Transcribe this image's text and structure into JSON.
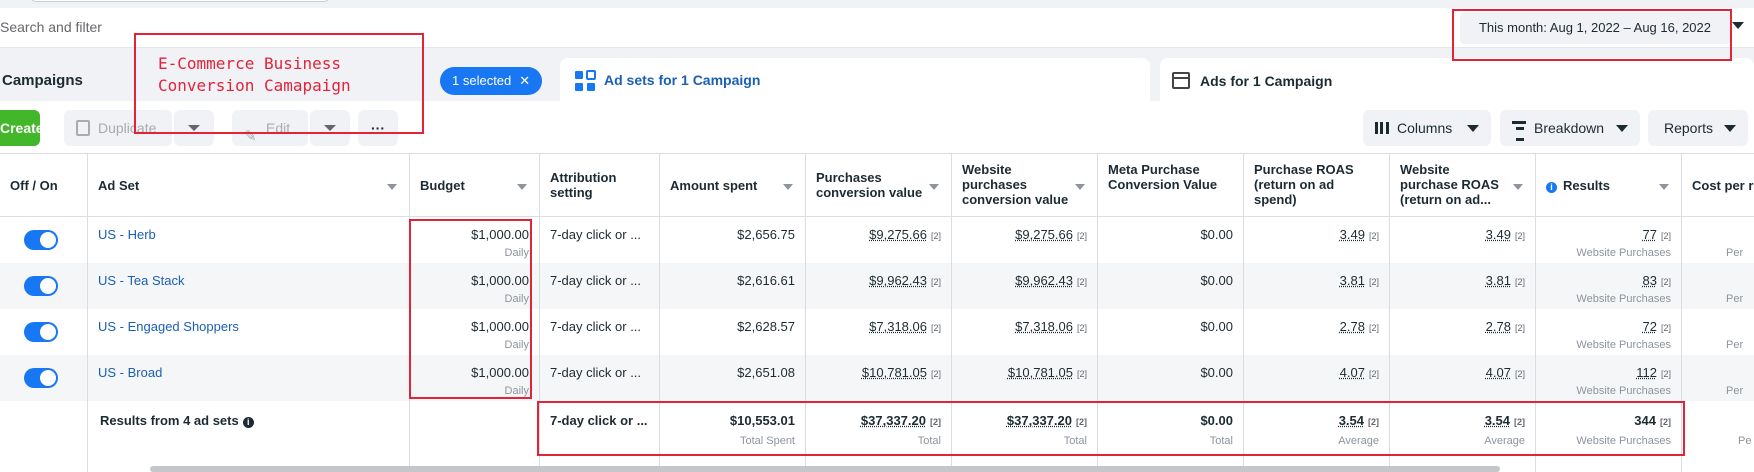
{
  "search": {
    "placeholder": "Search and filter"
  },
  "date_range": {
    "label": "This month: Aug 1, 2022 – Aug 16, 2022"
  },
  "tabs": {
    "campaigns": "Campaigns",
    "selected_chip": "1 selected",
    "adsets": "Ad sets for 1 Campaign",
    "ads": "Ads for 1 Campaign"
  },
  "annotation": {
    "line1": "E-Commerce Business",
    "line2": "Conversion Camapaign"
  },
  "toolbar": {
    "create": "Create",
    "duplicate": "Duplicate",
    "edit": "Edit",
    "more": "···",
    "columns": "Columns",
    "breakdown": "Breakdown",
    "reports": "Reports"
  },
  "columns": {
    "off_on": "Off / On",
    "ad_set": "Ad Set",
    "budget": "Budget",
    "attribution": "Attribution setting",
    "amount_spent": "Amount spent",
    "purchases_value": "Purchases conversion value",
    "website_purchases_value": "Website purchases conversion value",
    "meta_purchase_value": "Meta Purchase Conversion Value",
    "purchase_roas": "Purchase ROAS (return on ad spend)",
    "website_purchase_roas": "Website purchase ROAS (return on ad...",
    "results": "Results",
    "cost_per": "Cost per r"
  },
  "rows": [
    {
      "name": "US - Herb",
      "budget": "$1,000.00",
      "budget_sub": "Daily",
      "attribution": "7-day click or ...",
      "spent": "$2,656.75",
      "purchases_value": "$9,275.66",
      "website_value": "$9,275.66",
      "meta_value": "$0.00",
      "roas": "3.49",
      "web_roas": "3.49",
      "results": "77",
      "results_sub": "Website Purchases",
      "cost_sub": "Per"
    },
    {
      "name": "US - Tea Stack",
      "budget": "$1,000.00",
      "budget_sub": "Daily",
      "attribution": "7-day click or ...",
      "spent": "$2,616.61",
      "purchases_value": "$9,962.43",
      "website_value": "$9,962.43",
      "meta_value": "$0.00",
      "roas": "3.81",
      "web_roas": "3.81",
      "results": "83",
      "results_sub": "Website Purchases",
      "cost_sub": "Per"
    },
    {
      "name": "US - Engaged Shoppers",
      "budget": "$1,000.00",
      "budget_sub": "Daily",
      "attribution": "7-day click or ...",
      "spent": "$2,628.57",
      "purchases_value": "$7,318.06",
      "website_value": "$7,318.06",
      "meta_value": "$0.00",
      "roas": "2.78",
      "web_roas": "2.78",
      "results": "72",
      "results_sub": "Website Purchases",
      "cost_sub": "Per"
    },
    {
      "name": "US - Broad",
      "budget": "$1,000.00",
      "budget_sub": "Daily",
      "attribution": "7-day click or ...",
      "spent": "$2,651.08",
      "purchases_value": "$10,781.05",
      "website_value": "$10,781.05",
      "meta_value": "$0.00",
      "roas": "4.07",
      "web_roas": "4.07",
      "results": "112",
      "results_sub": "Website Purchases",
      "cost_sub": "Per"
    }
  ],
  "totals": {
    "label": "Results from 4 ad sets",
    "attribution": "7-day click or ...",
    "spent": "$10,553.01",
    "spent_sub": "Total Spent",
    "purchases_value": "$37,337.20",
    "purchases_sub": "Total",
    "website_value": "$37,337.20",
    "website_sub": "Total",
    "meta_value": "$0.00",
    "meta_sub": "Total",
    "roas": "3.54",
    "roas_sub": "Average",
    "web_roas": "3.54",
    "web_roas_sub": "Average",
    "results": "344",
    "results_sub": "Website Purchases",
    "cost_sub": "Pe"
  },
  "footnote_mark": "[2]",
  "colors": {
    "accent": "#1877f2",
    "create_green": "#42b72a",
    "annotation_red": "#e2233a",
    "link": "#1a5fb4"
  }
}
